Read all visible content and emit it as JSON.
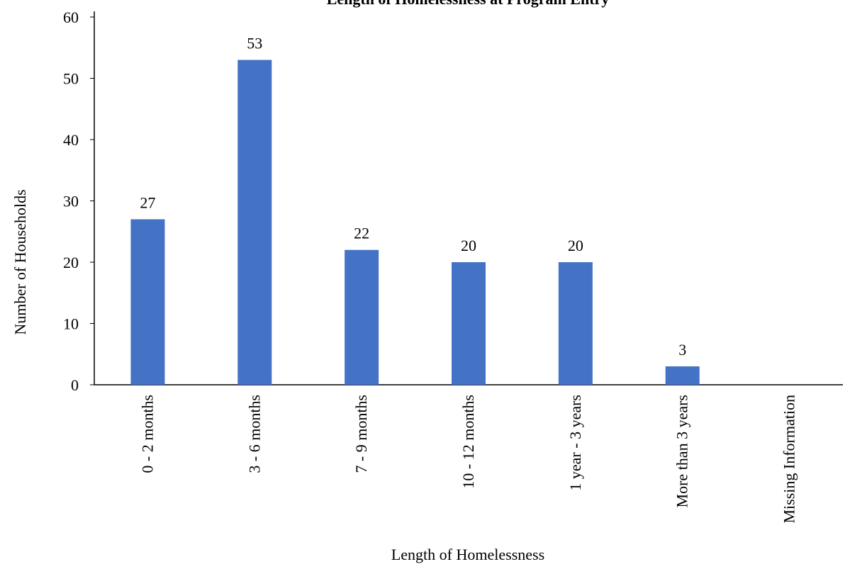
{
  "chart_data": {
    "type": "bar",
    "title": "Length of Homelessness at Program Entry",
    "xlabel": "Length of Homelessness",
    "ylabel": "Number of Households",
    "categories": [
      "0 - 2 months",
      "3 - 6 months",
      "7 - 9 months",
      "10 - 12 months",
      "1 year - 3 years",
      "More than 3 years",
      "Missing Information"
    ],
    "values": [
      27,
      53,
      22,
      20,
      20,
      3,
      0
    ],
    "data_labels": [
      "27",
      "53",
      "22",
      "20",
      "20",
      "3",
      ""
    ],
    "ylim": [
      0,
      60
    ],
    "yticks": [
      0,
      10,
      20,
      30,
      40,
      50,
      60
    ],
    "grid": false,
    "legend": "none",
    "bar_color": "#4472C4"
  }
}
